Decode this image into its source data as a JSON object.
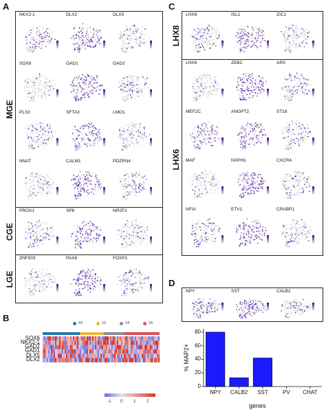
{
  "panels": {
    "A": {
      "letter": "A",
      "groups": [
        {
          "label": "MGE",
          "rows": [
            [
              "NKX2-1",
              "DLX2",
              "DLX5"
            ],
            [
              "SOX6",
              "GAD1",
              "GAD2"
            ],
            [
              "PLS3",
              "SFTA3",
              "LMO1"
            ],
            [
              "NNAT",
              "CALM1",
              "PDZRN4"
            ]
          ]
        },
        {
          "label": "CGE",
          "rows": [
            [
              "PROX1",
              "SP8",
              "NR2F2"
            ]
          ]
        },
        {
          "label": "LGE",
          "rows": [
            [
              "ZNF503",
              "PAX6",
              "FOXP1"
            ]
          ]
        }
      ]
    },
    "B": {
      "letter": "B",
      "clusters": [
        {
          "label": "10",
          "color": "#1f77b4"
        },
        {
          "label": "13",
          "color": "#f2b53a"
        },
        {
          "label": "14",
          "color": "#8c8c8c"
        },
        {
          "label": "15",
          "color": "#d9534f"
        }
      ],
      "genes": [
        "SOX6",
        "NKX2-1",
        "GAD2",
        "GAD1",
        "DLX5",
        "DLX2"
      ],
      "colorbar_ticks": [
        "-1",
        "0",
        "1",
        "2"
      ]
    },
    "C": {
      "letter": "C",
      "groups": [
        {
          "label": "LHX8",
          "rows": [
            [
              "LHX8",
              "ISL1",
              "ZIC1"
            ]
          ]
        },
        {
          "label": "LHX6",
          "rows": [
            [
              "LHX6",
              "ZEB2",
              "ARX"
            ],
            [
              "MEF2C",
              "ANGPT2",
              "ST18"
            ],
            [
              "MAF",
              "NXPH1",
              "CXCR4"
            ],
            [
              "NFIA",
              "ETV1",
              "CRABP1"
            ]
          ]
        }
      ]
    },
    "D": {
      "letter": "D",
      "genes": [
        "NPY",
        "SST",
        "CALB2"
      ]
    }
  },
  "chart_data": {
    "type": "bar",
    "categories": [
      "NPY",
      "CALB2",
      "SST",
      "PV",
      "CHAT"
    ],
    "values": [
      80,
      13,
      42,
      0,
      0
    ],
    "xlabel": "genes",
    "ylabel": "% MAP2+",
    "ylim": [
      0,
      85
    ],
    "yticks": [
      0,
      20,
      40,
      60,
      80
    ],
    "bar_color": "#1a1aff",
    "grid": false
  },
  "colors": {
    "expr_low": "#d9d9d9",
    "expr_high": "#5b2ea6",
    "legend_top": "#3f007d",
    "legend_bottom": "#f2effa"
  }
}
